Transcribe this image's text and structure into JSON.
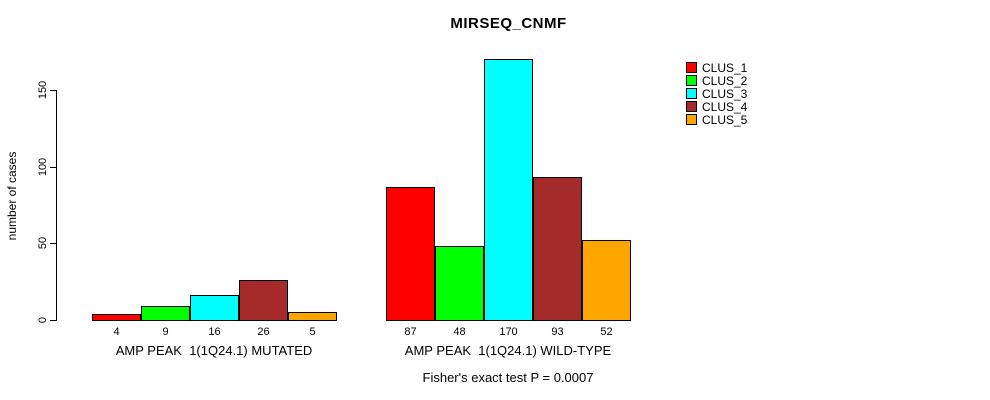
{
  "chart_data": {
    "type": "bar",
    "title": "MIRSEQ_CNMF",
    "ylabel": "number of cases",
    "yticks": [
      0,
      50,
      100,
      150
    ],
    "ylim": [
      0,
      170
    ],
    "grid": false,
    "legend_position": "top-right",
    "bar_value_labels_shown": true,
    "categories": [
      "AMP PEAK  1(1Q24.1) MUTATED",
      "AMP PEAK  1(1Q24.1) WILD-TYPE"
    ],
    "series": [
      {
        "name": "CLUS_1",
        "color": "#FF0000",
        "values": [
          4,
          87
        ]
      },
      {
        "name": "CLUS_2",
        "color": "#00FF00",
        "values": [
          9,
          48
        ]
      },
      {
        "name": "CLUS_3",
        "color": "#00FFFF",
        "values": [
          16,
          170
        ]
      },
      {
        "name": "CLUS_4",
        "color": "#A52A2A",
        "values": [
          26,
          93
        ]
      },
      {
        "name": "CLUS_5",
        "color": "#FFA500",
        "values": [
          5,
          52
        ]
      }
    ],
    "annotation": "Fisher's exact test P = 0.0007"
  }
}
